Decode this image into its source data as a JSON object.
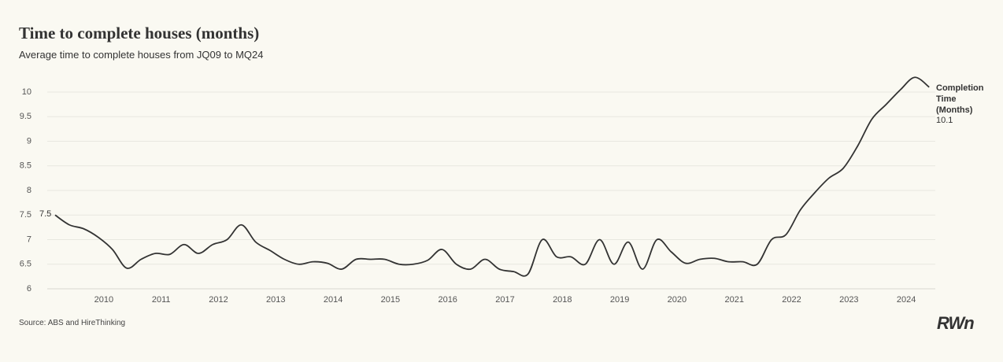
{
  "chart_data": {
    "type": "line",
    "title": "Time to complete houses (months)",
    "subtitle": "Average time to complete houses from JQ09 to MQ24",
    "source": "Source: ABS and HireThinking",
    "logo": "RWn",
    "x": [
      2009.15,
      2009.4,
      2009.65,
      2009.9,
      2010.15,
      2010.4,
      2010.65,
      2010.9,
      2011.15,
      2011.4,
      2011.65,
      2011.9,
      2012.15,
      2012.4,
      2012.65,
      2012.9,
      2013.15,
      2013.4,
      2013.65,
      2013.9,
      2014.15,
      2014.4,
      2014.65,
      2014.9,
      2015.15,
      2015.4,
      2015.65,
      2015.9,
      2016.15,
      2016.4,
      2016.65,
      2016.9,
      2017.15,
      2017.4,
      2017.65,
      2017.9,
      2018.15,
      2018.4,
      2018.65,
      2018.9,
      2019.15,
      2019.4,
      2019.65,
      2019.9,
      2020.15,
      2020.4,
      2020.65,
      2020.9,
      2021.15,
      2021.4,
      2021.65,
      2021.9,
      2022.15,
      2022.4,
      2022.65,
      2022.9,
      2023.15,
      2023.4,
      2023.65,
      2023.9,
      2024.15,
      2024.4
    ],
    "series": [
      {
        "name": "Completion Time (Months)",
        "color": "#333333",
        "values": [
          7.5,
          7.3,
          7.22,
          7.05,
          6.8,
          6.42,
          6.6,
          6.72,
          6.7,
          6.9,
          6.72,
          6.9,
          7.0,
          7.3,
          6.95,
          6.78,
          6.6,
          6.5,
          6.55,
          6.52,
          6.4,
          6.6,
          6.6,
          6.6,
          6.5,
          6.5,
          6.58,
          6.8,
          6.5,
          6.4,
          6.6,
          6.4,
          6.35,
          6.3,
          7.0,
          6.65,
          6.65,
          6.5,
          7.0,
          6.5,
          6.95,
          6.4,
          7.0,
          6.75,
          6.52,
          6.6,
          6.62,
          6.55,
          6.55,
          6.5,
          7.0,
          7.1,
          7.6,
          7.95,
          8.25,
          8.45,
          8.9,
          9.45,
          9.75,
          10.05,
          10.3,
          10.1
        ]
      }
    ],
    "xlim": [
      2009.15,
      2024.63
    ],
    "xticks": [
      2010,
      2011,
      2012,
      2013,
      2014,
      2015,
      2016,
      2017,
      2018,
      2019,
      2020,
      2021,
      2022,
      2023,
      2024
    ],
    "ylim": [
      6,
      10
    ],
    "yticks": [
      6,
      6.5,
      7,
      7.5,
      8,
      8.5,
      9,
      9.5,
      10
    ],
    "grid": true
  }
}
